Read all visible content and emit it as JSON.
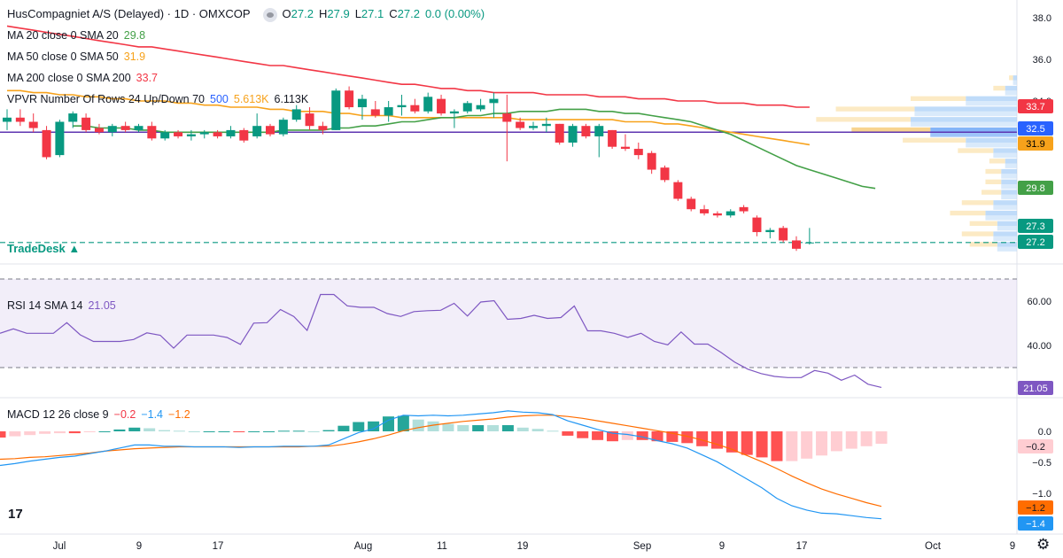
{
  "header": {
    "symbol": "HusCompagniet A/S (Delayed) · 1D · OMXCOP",
    "ohlc": {
      "o_label": "O",
      "o": "27.2",
      "h_label": "H",
      "h": "27.9",
      "l_label": "L",
      "l": "27.1",
      "c_label": "C",
      "c": "27.2",
      "change": "0.0 (0.00%)"
    }
  },
  "indicators": {
    "ma20": {
      "label": "MA 20 close 0 SMA 20",
      "value": "29.8",
      "color": "#43a047"
    },
    "ma50": {
      "label": "MA 50 close 0 SMA 50",
      "value": "31.9",
      "color": "#f7a21b"
    },
    "ma200": {
      "label": "MA 200 close 0 SMA 200",
      "value": "33.7",
      "color": "#f23645"
    },
    "vpvr": {
      "label": "VPVR Number Of Rows 24 Up/Down 70",
      "v1": "500",
      "v2": "5.613K",
      "v3": "6.113K",
      "v1_color": "#2962ff",
      "v2_color": "#f7a21b"
    },
    "rsi": {
      "label": "RSI 14 SMA 14",
      "value": "21.05",
      "color": "#7e57c2"
    },
    "macd": {
      "label": "MACD 12 26 close 9",
      "hist": "−0.2",
      "macd": "−1.4",
      "signal": "−1.2",
      "hist_color": "#f23645",
      "macd_color": "#2196f3",
      "signal_color": "#ff6d00"
    }
  },
  "brand": "TradeDesk ▲",
  "logo": "17",
  "settings_icon": "gear-icon",
  "price_axis": {
    "ticks": [
      "38.0",
      "36.0",
      "34.0"
    ]
  },
  "price_badges": [
    {
      "label": "33.7",
      "bg": "#f23645",
      "fg": "#ffffff"
    },
    {
      "label": "32.5",
      "bg": "#2962ff",
      "fg": "#ffffff"
    },
    {
      "label": "31.9",
      "bg": "#f7a21b",
      "fg": "#000000"
    },
    {
      "label": "29.8",
      "bg": "#43a047",
      "fg": "#ffffff"
    },
    {
      "label": "27.3",
      "bg": "#089981",
      "fg": "#ffffff"
    },
    {
      "label": "27.2",
      "bg": "#089981",
      "fg": "#ffffff"
    }
  ],
  "rsi_axis": {
    "ticks": [
      "60.00",
      "40.00"
    ],
    "badge": "21.05"
  },
  "macd_axis": {
    "ticks": [
      "0.0",
      "−0.5",
      "−1.0"
    ],
    "badges": [
      {
        "label": "−0.2"
      },
      {
        "label": "−1.2"
      },
      {
        "label": "−1.4"
      }
    ]
  },
  "time_axis": {
    "labels": [
      "Jul",
      "9",
      "17",
      "Aug",
      "11",
      "19",
      "Sep",
      "9",
      "17",
      "Oct",
      "9"
    ]
  },
  "chart_data": {
    "type": "candlestick",
    "price": {
      "candles": [
        [
          33.0,
          33.6,
          32.6,
          33.2
        ],
        [
          33.2,
          33.6,
          32.8,
          33.0
        ],
        [
          33.0,
          33.4,
          32.5,
          32.7
        ],
        [
          32.6,
          32.8,
          31.2,
          31.3
        ],
        [
          31.4,
          33.1,
          31.3,
          33.0
        ],
        [
          33.0,
          33.5,
          32.7,
          33.4
        ],
        [
          33.2,
          33.4,
          32.5,
          32.6
        ],
        [
          32.7,
          32.9,
          32.4,
          32.5
        ],
        [
          32.5,
          32.9,
          32.3,
          32.8
        ],
        [
          32.8,
          33.0,
          32.5,
          32.6
        ],
        [
          32.6,
          32.9,
          32.5,
          32.8
        ],
        [
          32.8,
          33.0,
          32.1,
          32.2
        ],
        [
          32.2,
          32.6,
          32.1,
          32.5
        ],
        [
          32.5,
          32.6,
          32.2,
          32.3
        ],
        [
          32.3,
          32.6,
          32.1,
          32.4
        ],
        [
          32.4,
          32.6,
          32.2,
          32.5
        ],
        [
          32.5,
          32.6,
          32.2,
          32.3
        ],
        [
          32.3,
          32.8,
          32.2,
          32.6
        ],
        [
          32.6,
          32.7,
          32.0,
          32.1
        ],
        [
          32.3,
          33.4,
          32.2,
          32.8
        ],
        [
          32.8,
          32.9,
          32.3,
          32.4
        ],
        [
          32.4,
          33.2,
          32.3,
          33.1
        ],
        [
          33.1,
          33.8,
          33.0,
          33.6
        ],
        [
          33.4,
          33.7,
          32.6,
          32.8
        ],
        [
          32.8,
          33.0,
          32.4,
          32.6
        ],
        [
          32.6,
          34.6,
          32.6,
          34.5
        ],
        [
          34.5,
          34.7,
          33.6,
          33.7
        ],
        [
          33.7,
          34.3,
          33.1,
          34.1
        ],
        [
          33.6,
          34.0,
          33.2,
          33.3
        ],
        [
          33.3,
          34.0,
          33.0,
          33.7
        ],
        [
          33.7,
          34.3,
          33.3,
          33.8
        ],
        [
          33.8,
          34.1,
          33.4,
          33.5
        ],
        [
          33.5,
          34.4,
          33.4,
          34.2
        ],
        [
          34.1,
          34.3,
          33.3,
          33.4
        ],
        [
          33.4,
          33.6,
          32.7,
          33.5
        ],
        [
          33.5,
          34.0,
          33.4,
          33.9
        ],
        [
          33.6,
          34.1,
          33.5,
          33.8
        ],
        [
          33.9,
          34.4,
          33.2,
          34.1
        ],
        [
          33.4,
          34.3,
          31.1,
          33.0
        ],
        [
          33.0,
          33.2,
          32.6,
          32.7
        ],
        [
          32.7,
          33.0,
          32.6,
          32.8
        ],
        [
          32.8,
          33.2,
          32.5,
          32.9
        ],
        [
          32.9,
          32.9,
          31.9,
          32.0
        ],
        [
          32.0,
          32.9,
          31.8,
          32.8
        ],
        [
          32.8,
          32.9,
          32.2,
          32.3
        ],
        [
          32.3,
          32.9,
          31.3,
          32.8
        ],
        [
          32.6,
          32.6,
          31.7,
          31.8
        ],
        [
          31.8,
          32.4,
          31.6,
          31.7
        ],
        [
          31.7,
          32.0,
          31.2,
          31.4
        ],
        [
          31.5,
          31.6,
          30.5,
          30.7
        ],
        [
          30.8,
          30.9,
          30.1,
          30.2
        ],
        [
          30.1,
          30.2,
          29.2,
          29.3
        ],
        [
          29.3,
          29.4,
          28.7,
          28.8
        ],
        [
          28.8,
          29.0,
          28.5,
          28.6
        ],
        [
          28.6,
          28.7,
          28.4,
          28.5
        ],
        [
          28.5,
          28.8,
          28.4,
          28.7
        ],
        [
          28.9,
          29.0,
          28.6,
          28.7
        ],
        [
          28.4,
          28.5,
          27.5,
          27.7
        ],
        [
          27.7,
          27.9,
          27.4,
          27.8
        ],
        [
          27.9,
          28.0,
          27.2,
          27.3
        ],
        [
          27.3,
          27.5,
          26.8,
          26.9
        ],
        [
          27.2,
          27.9,
          27.1,
          27.2
        ]
      ],
      "ma20": [
        32.8,
        32.8,
        32.7,
        32.7,
        32.7,
        32.6,
        32.6,
        32.5,
        32.5,
        32.5,
        32.5,
        32.5,
        32.5,
        32.5,
        32.5,
        32.5,
        32.6,
        32.6,
        32.6,
        32.6,
        32.7,
        32.7,
        32.8,
        32.8,
        32.9,
        33.0,
        33.0,
        33.1,
        33.2,
        33.2,
        33.3,
        33.3,
        33.4,
        33.4,
        33.5,
        33.5,
        33.5,
        33.6,
        33.6,
        33.6,
        33.5,
        33.5,
        33.4,
        33.4,
        33.3,
        33.2,
        33.1,
        33.0,
        32.8,
        32.6,
        32.4,
        32.1,
        31.8,
        31.5,
        31.2,
        30.9,
        30.7,
        30.5,
        30.3,
        30.1,
        29.9,
        29.8
      ],
      "ma50": [
        34.5,
        34.5,
        34.4,
        34.4,
        34.3,
        34.3,
        34.2,
        34.2,
        34.1,
        34.1,
        34.0,
        34.0,
        34.0,
        33.9,
        33.9,
        33.8,
        33.8,
        33.7,
        33.7,
        33.7,
        33.6,
        33.6,
        33.5,
        33.5,
        33.5,
        33.4,
        33.4,
        33.3,
        33.3,
        33.3,
        33.2,
        33.2,
        33.2,
        33.2,
        33.2,
        33.2,
        33.2,
        33.2,
        33.2,
        33.1,
        33.1,
        33.1,
        33.1,
        33.1,
        33.1,
        33.1,
        33.1,
        33.0,
        33.0,
        33.0,
        32.9,
        32.9,
        32.8,
        32.7,
        32.6,
        32.5,
        32.4,
        32.3,
        32.2,
        32.1,
        32.0,
        31.9
      ],
      "ma200": [
        37.6,
        37.5,
        37.4,
        37.3,
        37.2,
        37.1,
        37.0,
        36.9,
        36.8,
        36.7,
        36.6,
        36.6,
        36.5,
        36.4,
        36.3,
        36.2,
        36.1,
        36.0,
        35.9,
        35.8,
        35.7,
        35.7,
        35.6,
        35.5,
        35.4,
        35.3,
        35.2,
        35.1,
        35.0,
        34.9,
        34.8,
        34.8,
        34.7,
        34.6,
        34.6,
        34.5,
        34.5,
        34.4,
        34.4,
        34.4,
        34.4,
        34.3,
        34.3,
        34.3,
        34.3,
        34.2,
        34.2,
        34.2,
        34.1,
        34.1,
        34.1,
        34.0,
        34.0,
        34.0,
        33.9,
        33.9,
        33.9,
        33.8,
        33.8,
        33.8,
        33.7,
        33.7
      ],
      "ylim": [
        26.5,
        38.5
      ],
      "poc": 32.5,
      "last_close": 27.2
    },
    "vpvr": [
      {
        "price": 27.0,
        "up": 0.5,
        "down": 0.7
      },
      {
        "price": 27.5,
        "up": 0.6,
        "down": 0.8
      },
      {
        "price": 28.0,
        "up": 0.5,
        "down": 0.7
      },
      {
        "price": 28.5,
        "up": 0.8,
        "down": 0.9
      },
      {
        "price": 29.0,
        "up": 0.6,
        "down": 0.8
      },
      {
        "price": 29.5,
        "up": 0.4,
        "down": 0.5
      },
      {
        "price": 30.0,
        "up": 0.4,
        "down": 0.4
      },
      {
        "price": 30.5,
        "up": 0.4,
        "down": 0.4
      },
      {
        "price": 31.0,
        "up": 0.3,
        "down": 0.4
      },
      {
        "price": 31.5,
        "up": 0.6,
        "down": 0.9
      },
      {
        "price": 32.0,
        "up": 1.3,
        "down": 1.6
      },
      {
        "price": 32.5,
        "up": 2.2,
        "down": 2.0
      },
      {
        "price": 33.0,
        "up": 2.7,
        "down": 2.4
      },
      {
        "price": 33.5,
        "up": 2.6,
        "down": 2.0
      },
      {
        "price": 34.0,
        "up": 1.3,
        "down": 1.4
      },
      {
        "price": 34.5,
        "up": 0.3,
        "down": 0.3
      },
      {
        "price": 35.0,
        "up": 0.1,
        "down": 0.1
      }
    ],
    "rsi": {
      "values": [
        45.5,
        47.5,
        45.5,
        45.5,
        45.5,
        50.3,
        44.8,
        41.8,
        41.8,
        41.8,
        42.7,
        45.7,
        44.6,
        38.8,
        44.7,
        44.7,
        44.7,
        43.6,
        40.5,
        50.1,
        50.3,
        56.2,
        53.1,
        46.8,
        63.0,
        63.0,
        57.9,
        57.2,
        57.2,
        54.4,
        53.1,
        55.3,
        55.7,
        55.9,
        59.0,
        53.3,
        59.6,
        60.2,
        51.8,
        52.2,
        53.6,
        52.2,
        52.6,
        57.8,
        46.6,
        46.6,
        45.5,
        43.6,
        45.5,
        41.8,
        40.3,
        46.1,
        40.6,
        40.6,
        36.8,
        32.5,
        29.3,
        27.3,
        26.0,
        25.5,
        25.5,
        28.7,
        27.5,
        24.3,
        26.6,
        22.5,
        21.05
      ],
      "ylim": [
        18,
        72
      ],
      "upper": 70,
      "lower": 30
    },
    "macd": {
      "macd": [
        -0.55,
        -0.52,
        -0.48,
        -0.45,
        -0.42,
        -0.4,
        -0.36,
        -0.32,
        -0.27,
        -0.22,
        -0.22,
        -0.24,
        -0.24,
        -0.25,
        -0.25,
        -0.25,
        -0.26,
        -0.25,
        -0.25,
        -0.24,
        -0.24,
        -0.24,
        -0.22,
        -0.12,
        -0.02,
        0.04,
        0.18,
        0.26,
        0.25,
        0.26,
        0.25,
        0.26,
        0.28,
        0.3,
        0.33,
        0.31,
        0.3,
        0.27,
        0.17,
        0.1,
        0.03,
        -0.03,
        -0.05,
        -0.09,
        -0.15,
        -0.2,
        -0.27,
        -0.38,
        -0.49,
        -0.63,
        -0.77,
        -0.91,
        -1.08,
        -1.2,
        -1.27,
        -1.32,
        -1.33,
        -1.36,
        -1.39,
        -1.41
      ],
      "signal": [
        -0.45,
        -0.44,
        -0.42,
        -0.41,
        -0.39,
        -0.37,
        -0.35,
        -0.32,
        -0.3,
        -0.28,
        -0.27,
        -0.26,
        -0.25,
        -0.25,
        -0.25,
        -0.25,
        -0.25,
        -0.25,
        -0.25,
        -0.25,
        -0.25,
        -0.24,
        -0.24,
        -0.21,
        -0.17,
        -0.12,
        -0.06,
        0.01,
        0.06,
        0.1,
        0.13,
        0.16,
        0.18,
        0.2,
        0.23,
        0.25,
        0.26,
        0.26,
        0.24,
        0.21,
        0.17,
        0.13,
        0.09,
        0.05,
        0.01,
        -0.03,
        -0.08,
        -0.14,
        -0.21,
        -0.29,
        -0.39,
        -0.49,
        -0.6,
        -0.72,
        -0.83,
        -0.93,
        -1.01,
        -1.08,
        -1.15,
        -1.21
      ],
      "ylim": [
        -1.6,
        0.35
      ]
    }
  }
}
